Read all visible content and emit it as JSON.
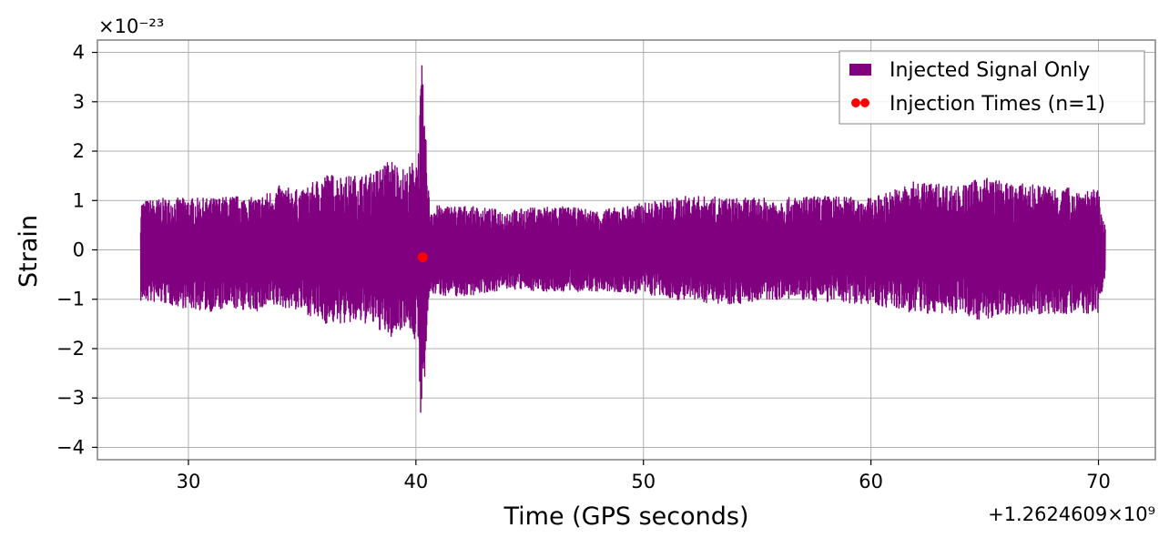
{
  "chart_data": {
    "type": "line",
    "title": "",
    "xlabel": "Time (GPS seconds)",
    "ylabel": "Strain",
    "x_offset_text": "+1.2624609×10⁹",
    "x_offset": 1262460900,
    "y_scale_text": "×10⁻²³",
    "y_scale": 1e-23,
    "xlim": [
      26,
      72.5
    ],
    "ylim": [
      -4.25,
      4.25
    ],
    "xticks": [
      30,
      40,
      50,
      60,
      70
    ],
    "xtick_labels": [
      "30",
      "40",
      "50",
      "60",
      "70"
    ],
    "yticks": [
      -4,
      -3,
      -2,
      -1,
      0,
      1,
      2,
      3,
      4
    ],
    "ytick_labels": [
      "−4",
      "−3",
      "−2",
      "−1",
      "0",
      "1",
      "2",
      "3",
      "4"
    ],
    "grid": true,
    "legend_position": "upper-right",
    "colors": {
      "signal": "#800080",
      "injection": "#ff0000",
      "grid": "#b0b0b0",
      "frame": "#808080"
    },
    "series": [
      {
        "name": "Injected Signal Only",
        "style": "line",
        "color": "#800080",
        "time_range": [
          27.9,
          70.3
        ],
        "envelope": [
          {
            "x": 28.0,
            "upper": 1.0,
            "lower": -1.05
          },
          {
            "x": 29.0,
            "upper": 1.05,
            "lower": -1.1
          },
          {
            "x": 30.0,
            "upper": 1.05,
            "lower": -1.2
          },
          {
            "x": 31.0,
            "upper": 1.05,
            "lower": -1.25
          },
          {
            "x": 32.0,
            "upper": 1.1,
            "lower": -1.2
          },
          {
            "x": 33.0,
            "upper": 1.05,
            "lower": -1.25
          },
          {
            "x": 34.0,
            "upper": 1.3,
            "lower": -1.15
          },
          {
            "x": 35.0,
            "upper": 1.2,
            "lower": -1.25
          },
          {
            "x": 36.0,
            "upper": 1.55,
            "lower": -1.5
          },
          {
            "x": 37.0,
            "upper": 1.5,
            "lower": -1.5
          },
          {
            "x": 38.0,
            "upper": 1.55,
            "lower": -1.5
          },
          {
            "x": 38.9,
            "upper": 1.85,
            "lower": -1.8
          },
          {
            "x": 39.6,
            "upper": 1.6,
            "lower": -1.5
          },
          {
            "x": 40.1,
            "upper": 2.0,
            "lower": -2.0
          },
          {
            "x": 40.25,
            "upper": 3.85,
            "lower": -3.85
          },
          {
            "x": 40.6,
            "upper": 0.9,
            "lower": -0.9
          },
          {
            "x": 42.0,
            "upper": 0.9,
            "lower": -0.95
          },
          {
            "x": 44.0,
            "upper": 0.8,
            "lower": -0.8
          },
          {
            "x": 46.0,
            "upper": 0.9,
            "lower": -0.85
          },
          {
            "x": 48.0,
            "upper": 0.8,
            "lower": -0.85
          },
          {
            "x": 50.0,
            "upper": 0.95,
            "lower": -0.9
          },
          {
            "x": 52.0,
            "upper": 1.1,
            "lower": -1.05
          },
          {
            "x": 54.0,
            "upper": 1.05,
            "lower": -1.1
          },
          {
            "x": 56.0,
            "upper": 1.05,
            "lower": -1.0
          },
          {
            "x": 58.0,
            "upper": 1.1,
            "lower": -1.05
          },
          {
            "x": 60.0,
            "upper": 1.05,
            "lower": -1.1
          },
          {
            "x": 62.0,
            "upper": 1.4,
            "lower": -1.3
          },
          {
            "x": 64.0,
            "upper": 1.3,
            "lower": -1.3
          },
          {
            "x": 65.0,
            "upper": 1.5,
            "lower": -1.45
          },
          {
            "x": 66.0,
            "upper": 1.35,
            "lower": -1.3
          },
          {
            "x": 68.0,
            "upper": 1.3,
            "lower": -1.3
          },
          {
            "x": 70.0,
            "upper": 1.2,
            "lower": -1.3
          },
          {
            "x": 70.3,
            "upper": 0.5,
            "lower": -0.5
          }
        ]
      },
      {
        "name": "Injection Times (n=1)",
        "style": "scatter",
        "color": "#ff0000",
        "x": [
          40.3
        ],
        "y": [
          -0.15
        ]
      }
    ]
  }
}
